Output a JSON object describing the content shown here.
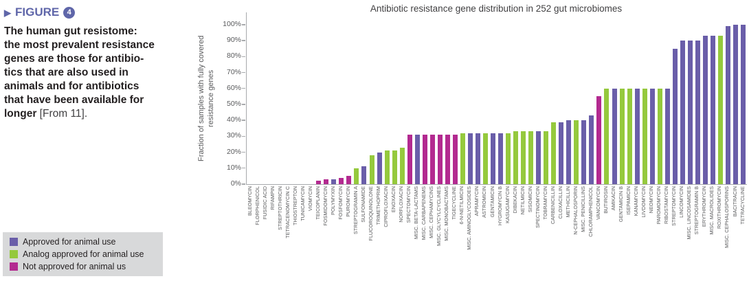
{
  "figure_caption": {
    "marker": "▶",
    "label": "FIGURE",
    "number": "4",
    "lines": [
      "The human gut resistome:",
      "the most prevalent resistance",
      "genes are those for antibio-",
      "tics that are also used in",
      "animals and for antibiotics",
      "that have been available for"
    ],
    "last_line_bold": "longer ",
    "last_line_normal": "[From 11]."
  },
  "legend": {
    "items": [
      {
        "key": "approved",
        "label": "Approved for animal use",
        "color": "#6A5EA9"
      },
      {
        "key": "analog",
        "label": "Analog approved for animal use",
        "color": "#95C93D"
      },
      {
        "key": "not_approved",
        "label": "Not approved for animal us",
        "color": "#B32A90"
      }
    ],
    "background": "#D8D9DA"
  },
  "colors": {
    "axis": "#A7A9AC",
    "tick_text": "#58595B",
    "title_text": "#414042",
    "caption_accent": "#5F66A9",
    "body_text": "#231F20"
  },
  "chart_data": {
    "type": "bar",
    "title": "Antibiotic resistance gene distribution in 252 gut microbiomes",
    "ylabel": "Fraction of samples with fully covered resistance genes",
    "ylabel_lines": [
      "Fraction of samples with fully covered",
      "resistance genes"
    ],
    "xlabel": "",
    "ylim": [
      0,
      100
    ],
    "yticks": [
      "0%",
      "10%",
      "20%",
      "30%",
      "40%",
      "50%",
      "60%",
      "70%",
      "80%",
      "90%",
      "100%"
    ],
    "grid": false,
    "legend_position": "outside-bottom-left",
    "bars": [
      {
        "label": "BLEOMYCIN",
        "value": 0,
        "category": "none"
      },
      {
        "label": "FLORPHENICOL",
        "value": 0,
        "category": "none"
      },
      {
        "label": "FUSIDIC ACID",
        "value": 0,
        "category": "none"
      },
      {
        "label": "RIFAMPIN",
        "value": 0,
        "category": "none"
      },
      {
        "label": "STREPTOTHRICIN",
        "value": 0,
        "category": "none"
      },
      {
        "label": "TETRACENOMYCIN C",
        "value": 0,
        "category": "none"
      },
      {
        "label": "THIOSTREPTON",
        "value": 0,
        "category": "none"
      },
      {
        "label": "TUNICAMYCIN",
        "value": 0,
        "category": "none"
      },
      {
        "label": "VIOMYCIN",
        "value": 0,
        "category": "none"
      },
      {
        "label": "TEICOPLANIN",
        "value": 2,
        "category": "not_approved"
      },
      {
        "label": "FOSMIDOMYCIN",
        "value": 3,
        "category": "not_approved"
      },
      {
        "label": "POLYMYXIN",
        "value": 3,
        "category": "approved"
      },
      {
        "label": "FOSFOMYCIN",
        "value": 4,
        "category": "not_approved"
      },
      {
        "label": "PUROMYCIN",
        "value": 5,
        "category": "not_approved"
      },
      {
        "label": "STREPTOGRAMIN A",
        "value": 10,
        "category": "analog"
      },
      {
        "label": "SULFONAMIDE",
        "value": 11,
        "category": "approved"
      },
      {
        "label": "FLUCOROQUINOLONE",
        "value": 18,
        "category": "analog"
      },
      {
        "label": "TRIMETHOPRIM",
        "value": 20,
        "category": "approved"
      },
      {
        "label": "CIPROFLOXACIN",
        "value": 21,
        "category": "analog"
      },
      {
        "label": "ENOXACIN",
        "value": 21,
        "category": "analog"
      },
      {
        "label": "NORFLOXACIN",
        "value": 23,
        "category": "analog"
      },
      {
        "label": "SPECTOMYCIN",
        "value": 31,
        "category": "not_approved"
      },
      {
        "label": "MISC. BETA-LACTAMS",
        "value": 31,
        "category": "approved"
      },
      {
        "label": "MISC. CARBAPENEMS",
        "value": 31,
        "category": "not_approved"
      },
      {
        "label": "MISC. CEPHAMYCINS",
        "value": 31,
        "category": "not_approved"
      },
      {
        "label": "MISC. GLYCYLCYCLINES",
        "value": 31,
        "category": "not_approved"
      },
      {
        "label": "MISC. MONOBACTAMS",
        "value": 31,
        "category": "not_approved"
      },
      {
        "label": "TIGECYCLINE",
        "value": 31,
        "category": "not_approved"
      },
      {
        "label": "6-N-NETILMICIN",
        "value": 32,
        "category": "analog"
      },
      {
        "label": "MISC. AMINOGLYCOSIDES",
        "value": 32,
        "category": "approved"
      },
      {
        "label": "APRAMYCIN",
        "value": 32,
        "category": "approved"
      },
      {
        "label": "ASTROMICIN",
        "value": 32,
        "category": "analog"
      },
      {
        "label": "GENTAMICIN",
        "value": 32,
        "category": "approved"
      },
      {
        "label": "HYGROMYCIN B",
        "value": 32,
        "category": "approved"
      },
      {
        "label": "KASUGAMYCIN",
        "value": 32,
        "category": "analog"
      },
      {
        "label": "DIBEKACIN",
        "value": 33,
        "category": "analog"
      },
      {
        "label": "NETILMICIN",
        "value": 33,
        "category": "analog"
      },
      {
        "label": "SISOMICIN",
        "value": 33,
        "category": "analog"
      },
      {
        "label": "SPECTINOMYCIN",
        "value": 33,
        "category": "approved"
      },
      {
        "label": "TOBRAMYCIN",
        "value": 33,
        "category": "analog"
      },
      {
        "label": "CARBENICILLIN",
        "value": 39,
        "category": "analog"
      },
      {
        "label": "CLOXACILLIN",
        "value": 39,
        "category": "approved"
      },
      {
        "label": "METHICILLIN",
        "value": 40,
        "category": "approved"
      },
      {
        "label": "N-CEPHALOSPORIN",
        "value": 40,
        "category": "analog"
      },
      {
        "label": "MISC. PENICILLINS",
        "value": 40,
        "category": "approved"
      },
      {
        "label": "CHLORAMPHENICOL",
        "value": 43,
        "category": "approved"
      },
      {
        "label": "VANCOMYCIN",
        "value": 55,
        "category": "not_approved"
      },
      {
        "label": "BUTIROSIN",
        "value": 60,
        "category": "analog"
      },
      {
        "label": "AMIKACIN",
        "value": 60,
        "category": "approved"
      },
      {
        "label": "GENTAMICIN B",
        "value": 60,
        "category": "analog"
      },
      {
        "label": "ISEPAMICIN",
        "value": 60,
        "category": "analog"
      },
      {
        "label": "KANAMYCIN",
        "value": 60,
        "category": "approved"
      },
      {
        "label": "LIVDOMYCIN",
        "value": 60,
        "category": "analog"
      },
      {
        "label": "NEOMYCIN",
        "value": 60,
        "category": "approved"
      },
      {
        "label": "PAROMOMYCIN",
        "value": 60,
        "category": "analog"
      },
      {
        "label": "RIBOSTAMYCIN",
        "value": 60,
        "category": "approved"
      },
      {
        "label": "STREPTOMYCIN",
        "value": 85,
        "category": "approved"
      },
      {
        "label": "LINCOMYCIN",
        "value": 90,
        "category": "approved"
      },
      {
        "label": "MISC. LINCOSAMIDES",
        "value": 90,
        "category": "approved"
      },
      {
        "label": "STREPTOGRAMIN B",
        "value": 90,
        "category": "approved"
      },
      {
        "label": "ERYTHROMYCIN",
        "value": 93,
        "category": "approved"
      },
      {
        "label": "MISC. MACROLIDES",
        "value": 93,
        "category": "approved"
      },
      {
        "label": "ROXITHROMYCIN",
        "value": 93,
        "category": "analog"
      },
      {
        "label": "MISC. CEPHALOSPORINS",
        "value": 99,
        "category": "approved"
      },
      {
        "label": "BACITRACIN",
        "value": 100,
        "category": "approved"
      },
      {
        "label": "TETRACYCLINE",
        "value": 100,
        "category": "approved"
      }
    ]
  }
}
